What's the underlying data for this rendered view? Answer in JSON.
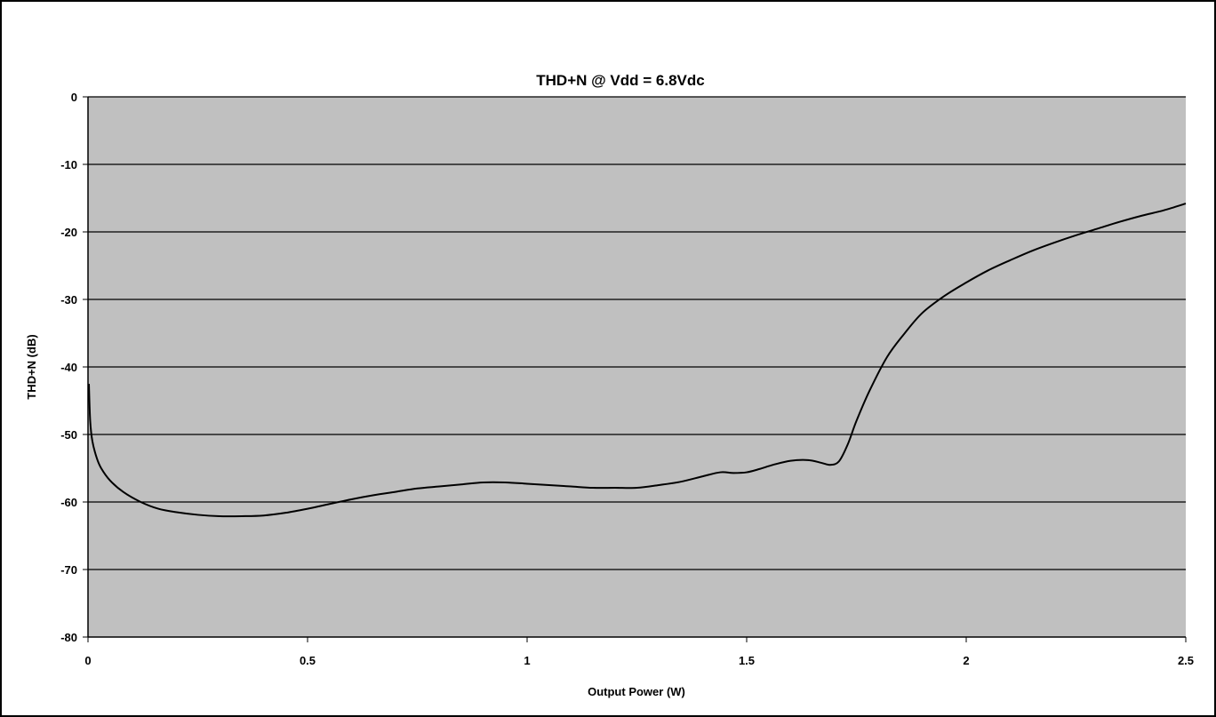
{
  "chart_data": {
    "type": "line",
    "title": "THD+N @ Vdd = 6.8Vdc",
    "xlabel": "Output Power (W)",
    "ylabel": "THD+N (dB)",
    "xlim": [
      0,
      2.5
    ],
    "ylim": [
      -80,
      0
    ],
    "x_ticks": [
      "0",
      "0.5",
      "1",
      "1.5",
      "2",
      "2.5"
    ],
    "x_tick_values": [
      0,
      0.5,
      1,
      1.5,
      2,
      2.5
    ],
    "y_ticks": [
      "0",
      "-10",
      "-20",
      "-30",
      "-40",
      "-50",
      "-60",
      "-70",
      "-80"
    ],
    "y_tick_values": [
      0,
      -10,
      -20,
      -30,
      -40,
      -50,
      -60,
      -70,
      -80
    ],
    "grid": "horizontal",
    "plot_background": "#c0c0c0",
    "line_color": "#000000",
    "series": [
      {
        "x": [
          0.002,
          0.005,
          0.01,
          0.02,
          0.03,
          0.05,
          0.08,
          0.12,
          0.16,
          0.2,
          0.25,
          0.3,
          0.35,
          0.4,
          0.45,
          0.5,
          0.55,
          0.6,
          0.65,
          0.7,
          0.75,
          0.8,
          0.85,
          0.9,
          0.95,
          1.0,
          1.05,
          1.1,
          1.15,
          1.2,
          1.25,
          1.3,
          1.35,
          1.4,
          1.44,
          1.47,
          1.5,
          1.53,
          1.56,
          1.6,
          1.64,
          1.67,
          1.69,
          1.71,
          1.73,
          1.75,
          1.78,
          1.82,
          1.86,
          1.9,
          1.95,
          2.0,
          2.05,
          2.1,
          2.15,
          2.2,
          2.25,
          2.3,
          2.35,
          2.4,
          2.45,
          2.5
        ],
        "y": [
          -42.5,
          -48,
          -51,
          -53.5,
          -55,
          -56.8,
          -58.5,
          -60,
          -61,
          -61.5,
          -61.9,
          -62.1,
          -62.1,
          -62,
          -61.6,
          -61,
          -60.3,
          -59.6,
          -59,
          -58.5,
          -58,
          -57.7,
          -57.4,
          -57.1,
          -57.1,
          -57.3,
          -57.5,
          -57.7,
          -57.9,
          -57.9,
          -57.9,
          -57.5,
          -57,
          -56.2,
          -55.6,
          -55.7,
          -55.6,
          -55.1,
          -54.5,
          -53.9,
          -53.8,
          -54.2,
          -54.5,
          -54,
          -51.5,
          -48,
          -43.5,
          -38.5,
          -35,
          -32,
          -29.5,
          -27.5,
          -25.7,
          -24.2,
          -22.8,
          -21.6,
          -20.5,
          -19.5,
          -18.5,
          -17.6,
          -16.8,
          -15.8
        ]
      }
    ]
  }
}
